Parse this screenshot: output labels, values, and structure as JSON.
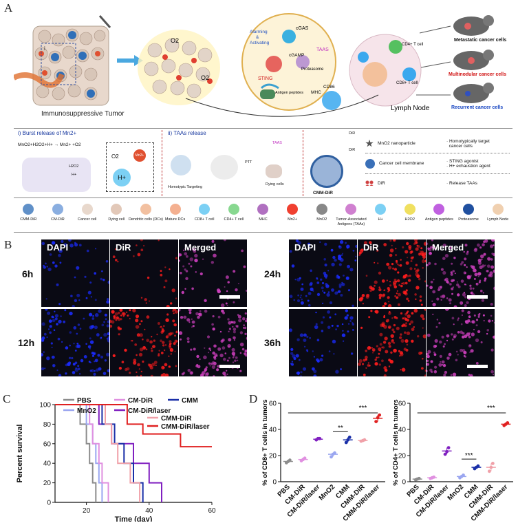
{
  "panel_labels": {
    "a": "A",
    "b": "B",
    "c": "C",
    "d": "D"
  },
  "schematic": {
    "tumor_label": "Immunosuppressive Tumor",
    "lymph_node_label": "Lymph Node",
    "cgas": "cGAS",
    "alarming": "Alarming\n&\nActivating",
    "cgamp": "cGAMP",
    "sting": "STING",
    "taas": "TAAS",
    "proteasome": "Proteasome",
    "antigen_peptides": "Antigen peptides",
    "mhc": "MHC",
    "cd86": "CD86",
    "cd4_tcell": "CD4+ T cell",
    "cd8_tcell": "CD8+ T cell",
    "o2_label": "O2",
    "inset_label": "i",
    "outcomes": [
      {
        "label": "Metastatic cancer cells",
        "color": "#111"
      },
      {
        "label": "Multinodular cancer cells",
        "color": "#d01010"
      },
      {
        "label": "Recurrent cancer cells",
        "color": "#1040c0"
      }
    ],
    "burst": {
      "title": "i) Burst release of Mn2+",
      "eq": "MnO2+H2O2+H+ → Mn2+ +O2",
      "h2o2": "H2O2",
      "hplus": "H+",
      "o2": "O2",
      "mn": "Mn2+",
      "h": "H+"
    },
    "taa_release": {
      "title": "ii) TAAs release",
      "homotypic": "Homotypic Targeting",
      "ptt": "PTT",
      "taas": "TAAS",
      "dying": "Dying cells"
    },
    "cmm": {
      "dir_top": "DiR",
      "dir_mid": "DiR",
      "name": "CMM-DiR",
      "rows": [
        {
          "component": "MnO2 nanoparticle",
          "function": "· Homotypically target\n  cancer cells"
        },
        {
          "component": "Cancer cell membrane",
          "function": "· STING agonist\n· H+ exhaustion agent"
        },
        {
          "component": "DiR",
          "function": "· Release  TAAs"
        }
      ]
    },
    "legend": [
      "CMM-DiR",
      "CM-DiR",
      "Cancer cell",
      "Dying cell",
      "Dendritic cells (DCs)",
      "Mature DCs",
      "CD8+ T cell",
      "CD4+ T cell",
      "MHC",
      "Mn2+",
      "MnO2",
      "Tumor-Associated Antigens (TAAs)",
      "H+",
      "H2O2",
      "Antigen peptides",
      "Proteasome",
      "Lymph Node"
    ]
  },
  "imaging": {
    "channels": [
      "DAPI",
      "DiR",
      "Merged"
    ],
    "timepoints": [
      "6h",
      "12h",
      "24h",
      "36h"
    ]
  },
  "chart_data": [
    {
      "type": "line",
      "subtype": "kaplan-meier",
      "xlabel": "Time (day)",
      "ylabel": "Percent survival",
      "xlim": [
        10,
        60
      ],
      "ylim": [
        0,
        100
      ],
      "xticks": [
        20,
        40,
        60
      ],
      "yticks": [
        0,
        20,
        40,
        60,
        80,
        100
      ],
      "legend_placement": "top",
      "series": [
        {
          "name": "PBS",
          "color": "#8c8c8c",
          "steps": [
            [
              10,
              100
            ],
            [
              18,
              100
            ],
            [
              18,
              80
            ],
            [
              20,
              80
            ],
            [
              20,
              60
            ],
            [
              21,
              60
            ],
            [
              21,
              40
            ],
            [
              22,
              40
            ],
            [
              22,
              20
            ],
            [
              23,
              20
            ],
            [
              23,
              0
            ]
          ]
        },
        {
          "name": "MnO2",
          "color": "#9aa6f0",
          "steps": [
            [
              10,
              100
            ],
            [
              20,
              100
            ],
            [
              20,
              80
            ],
            [
              22,
              80
            ],
            [
              22,
              60
            ],
            [
              23,
              60
            ],
            [
              23,
              40
            ],
            [
              24,
              40
            ],
            [
              24,
              20
            ],
            [
              25,
              20
            ],
            [
              25,
              0
            ]
          ]
        },
        {
          "name": "CM-DiR",
          "color": "#e090e0",
          "steps": [
            [
              10,
              100
            ],
            [
              21,
              100
            ],
            [
              21,
              80
            ],
            [
              22,
              80
            ],
            [
              22,
              60
            ],
            [
              24,
              60
            ],
            [
              24,
              40
            ],
            [
              25,
              40
            ],
            [
              25,
              20
            ],
            [
              27,
              20
            ],
            [
              27,
              0
            ]
          ]
        },
        {
          "name": "CM-DiR/laser",
          "color": "#8020c0",
          "steps": [
            [
              10,
              100
            ],
            [
              24,
              100
            ],
            [
              24,
              80
            ],
            [
              28,
              80
            ],
            [
              28,
              60
            ],
            [
              35,
              60
            ],
            [
              35,
              40
            ],
            [
              40,
              40
            ],
            [
              40,
              20
            ],
            [
              44,
              20
            ],
            [
              44,
              0
            ]
          ]
        },
        {
          "name": "CMM",
          "color": "#1a2fa8",
          "steps": [
            [
              10,
              100
            ],
            [
              25,
              100
            ],
            [
              25,
              80
            ],
            [
              29,
              80
            ],
            [
              29,
              60
            ],
            [
              32,
              60
            ],
            [
              32,
              40
            ],
            [
              35,
              40
            ],
            [
              35,
              20
            ],
            [
              38,
              20
            ],
            [
              38,
              0
            ]
          ]
        },
        {
          "name": "CMM-DiR",
          "color": "#f0a0a8",
          "steps": [
            [
              10,
              100
            ],
            [
              26,
              100
            ],
            [
              26,
              80
            ],
            [
              28,
              80
            ],
            [
              28,
              60
            ],
            [
              30,
              60
            ],
            [
              30,
              40
            ],
            [
              34,
              40
            ],
            [
              34,
              20
            ],
            [
              37,
              20
            ],
            [
              37,
              0
            ]
          ]
        },
        {
          "name": "CMM-DiR/laser",
          "color": "#e02020",
          "steps": [
            [
              10,
              100
            ],
            [
              33,
              100
            ],
            [
              33,
              80
            ],
            [
              38,
              80
            ],
            [
              38,
              70
            ],
            [
              50,
              70
            ],
            [
              50,
              57
            ],
            [
              60,
              57
            ]
          ]
        }
      ]
    },
    {
      "type": "scatter",
      "ylabel": "% of CD8+ T cells in tumors",
      "ylim": [
        0,
        60
      ],
      "yticks": [
        0,
        20,
        40,
        60
      ],
      "categories": [
        "PBS",
        "CM-DiR",
        "CM-DiR/laser",
        "MnO2",
        "CMM",
        "CMM-DiR",
        "CMM-DiR/laser"
      ],
      "colors": [
        "#8c8c8c",
        "#e090e0",
        "#8020c0",
        "#9aa6f0",
        "#1a2fa8",
        "#f0a0a8",
        "#e02020"
      ],
      "means": [
        15.5,
        17,
        32.5,
        21,
        32,
        31.5,
        48.5
      ],
      "points": [
        [
          14.5,
          15.5,
          16.5
        ],
        [
          16,
          17,
          18
        ],
        [
          32,
          33,
          33
        ],
        [
          19,
          21,
          22
        ],
        [
          30,
          32,
          34
        ],
        [
          31,
          31.5,
          32
        ],
        [
          46,
          49,
          51
        ]
      ],
      "significance": [
        {
          "label": "**",
          "from": 3,
          "to": 4
        },
        {
          "label": "***",
          "from": 0,
          "to": 6
        }
      ]
    },
    {
      "type": "scatter",
      "ylabel": "% of CD4+ T cells in tumors",
      "ylim": [
        0,
        60
      ],
      "yticks": [
        0,
        20,
        40,
        60
      ],
      "categories": [
        "PBS",
        "CM-DiR",
        "CM-DiR/laser",
        "MnO2",
        "CMM",
        "CMM-DiR",
        "CMM-DiR/laser"
      ],
      "colors": [
        "#8c8c8c",
        "#e090e0",
        "#8020c0",
        "#9aa6f0",
        "#1a2fa8",
        "#f0a0a8",
        "#e02020"
      ],
      "means": [
        2,
        3,
        23.5,
        4,
        11,
        11,
        44
      ],
      "points": [
        [
          1.5,
          2,
          2.5
        ],
        [
          2.5,
          3,
          3.5
        ],
        [
          21,
          23,
          26
        ],
        [
          3,
          4,
          5
        ],
        [
          10,
          11,
          12
        ],
        [
          8,
          11,
          14
        ],
        [
          43,
          44,
          45
        ]
      ],
      "significance": [
        {
          "label": "***",
          "from": 3,
          "to": 4
        },
        {
          "label": "***",
          "from": 0,
          "to": 6
        }
      ]
    }
  ]
}
